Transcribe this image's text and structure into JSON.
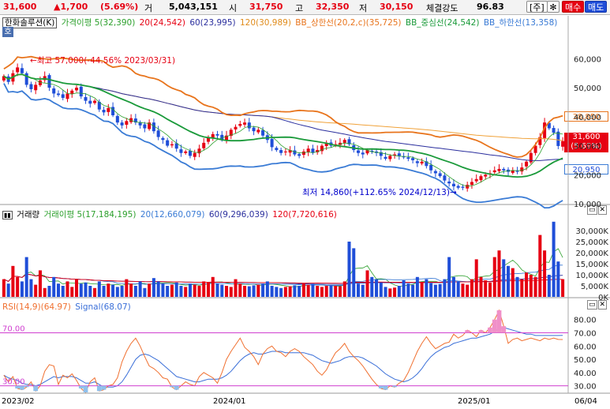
{
  "quote": {
    "price": "31,600",
    "change": "▲1,700",
    "change_pct": "(5.69%)",
    "volume_label": "거",
    "volume": "5,043,151",
    "open_label": "시",
    "open": "31,750",
    "high_label": "고",
    "high": "32,350",
    "low_label": "저",
    "low": "30,150",
    "strength_label": "체결강도",
    "strength": "96.83"
  },
  "buttons": {
    "week": "[주]",
    "settings_icon": "gear-icon",
    "buy": "매수",
    "sell": "매도"
  },
  "header_tab": "호",
  "price_legend": {
    "name": "한화솔루션(K)",
    "gap": "가격이평 5(32,390)",
    "ma20": "20(24,542)",
    "ma60": "60(23,995)",
    "ma120": "120(30,989)",
    "bb_upper": "BB_상한선(20,2,c)(35,725)",
    "bb_mid": "BB_중심선(24,542)",
    "bb_lower": "BB_하한선(13,358)"
  },
  "volume_legend": {
    "name": "거래량",
    "ma5": "거래이평 5(17,184,195)",
    "ma20": "20(12,660,079)",
    "ma60": "60(9,296,039)",
    "ma120": "120(7,720,616)"
  },
  "rsi_legend": {
    "rsi": "RSI(14,9)(64.97)",
    "signal": "Signal(68.07)"
  },
  "annotations": {
    "high": "←최고 57,000(-44.56% 2023/03/31)",
    "low": "최저 14,860(+112.65% 2024/12/13)→"
  },
  "price_tags": {
    "upper": "38,850",
    "current": "31,600",
    "current_pct": "(5.69%)",
    "lower": "20,950"
  },
  "x_labels": [
    "2023/02",
    "2024/01",
    "2025/01",
    "06/04"
  ],
  "colors": {
    "up": "#e60012",
    "down": "#1f4ed8",
    "ma5": "#2ca02c",
    "ma20": "#e8741c",
    "ma60": "#2b2f9e",
    "ma120": "#f0a23a",
    "bb_upper": "#e8741c",
    "bb_mid": "#1a9a3a",
    "bb_lower": "#3a7bd5",
    "rsi": "#f07030",
    "signal": "#3a6fd8"
  },
  "chart_data": [
    {
      "type": "candlestick",
      "title": "한화솔루션(K)",
      "ylim": [
        10000,
        68000
      ],
      "yticks": [
        10000,
        20000,
        30000,
        40000,
        50000,
        60000
      ],
      "ytick_labels": [
        "10,000",
        "20,000",
        "30,000",
        "40,000",
        "50,000",
        "60,000"
      ],
      "period": "weekly",
      "x_range": [
        "2023/02",
        "2025/06"
      ],
      "close": [
        54000,
        52000,
        55000,
        57000,
        55000,
        51000,
        49500,
        51000,
        52500,
        54000,
        50000,
        48000,
        47500,
        46500,
        48000,
        49000,
        50000,
        47000,
        45500,
        44500,
        45500,
        42500,
        41500,
        43000,
        40500,
        38000,
        37000,
        38500,
        39500,
        38000,
        37000,
        36000,
        38000,
        35000,
        33000,
        32000,
        30000,
        30500,
        29000,
        27500,
        28000,
        26500,
        27500,
        29000,
        31000,
        33000,
        34000,
        33500,
        32000,
        33500,
        35500,
        36500,
        37500,
        38000,
        36000,
        35000,
        35500,
        33500,
        32000,
        29500,
        28500,
        27500,
        28000,
        28500,
        27000,
        26500,
        28000,
        29000,
        27500,
        28500,
        30000,
        31000,
        30000,
        30500,
        31000,
        32000,
        30500,
        28500,
        27500,
        27000,
        28500,
        28000,
        27500,
        26500,
        25500,
        26500,
        27000,
        26500,
        26000,
        25500,
        25000,
        24000,
        24500,
        23000,
        21500,
        20500,
        19500,
        18000,
        17000,
        16000,
        15500,
        15500,
        16500,
        17500,
        18500,
        19500,
        20000,
        20500,
        21500,
        22000,
        21500,
        21000,
        21500,
        21000,
        22500,
        24500,
        27500,
        30000,
        33000,
        38000,
        36000,
        34500,
        29900,
        31600
      ],
      "high": 57000,
      "high_date": "2023/03/31",
      "low": 14860,
      "low_date": "2024/12/13",
      "last": {
        "open": 31750,
        "high": 32350,
        "low": 30150,
        "close": 31600,
        "change": 1700,
        "change_pct": 5.69
      },
      "series_last": {
        "ma5": 32390,
        "ma20": 24542,
        "ma60": 23995,
        "ma120": 30989,
        "bb_upper": 35725,
        "bb_mid": 24542,
        "bb_lower": 13358
      }
    },
    {
      "type": "bar",
      "title": "거래량",
      "ylim": [
        0,
        35000
      ],
      "ytick_labels": [
        "0K",
        "5,000K",
        "10,000K",
        "15,000K",
        "20,000K",
        "25,000K",
        "30,000K"
      ],
      "values_k": [
        8000,
        6000,
        14000,
        9000,
        7000,
        18000,
        8000,
        5500,
        12000,
        4000,
        5000,
        9000,
        6000,
        5000,
        7000,
        4500,
        8000,
        6000,
        6500,
        5000,
        4000,
        7000,
        5000,
        6000,
        5500,
        4500,
        5000,
        8000,
        6000,
        5000,
        7000,
        4000,
        6000,
        8500,
        7000,
        6000,
        5000,
        5500,
        6500,
        5000,
        4500,
        6000,
        5500,
        5000,
        7000,
        6500,
        9000,
        6000,
        5500,
        5000,
        4500,
        8000,
        6000,
        5000,
        4800,
        5200,
        5500,
        6000,
        7000,
        5000,
        4500,
        4000,
        4500,
        4800,
        5200,
        5000,
        6000,
        5500,
        6000,
        5000,
        4500,
        5000,
        5200,
        5000,
        4800,
        7000,
        25000,
        22000,
        6000,
        5500,
        12000,
        9000,
        8000,
        6500,
        4500,
        3800,
        4200,
        5000,
        7500,
        6000,
        5500,
        9000,
        6500,
        8000,
        6200,
        5500,
        5800,
        8000,
        18000,
        9000,
        7000,
        6000,
        5500,
        8000,
        17000,
        9000,
        7500,
        6500,
        18000,
        21000,
        17000,
        14000,
        13000,
        9000,
        8000,
        11000,
        10000,
        9000,
        28000,
        21000,
        10000,
        34000,
        16000,
        8000
      ],
      "last_k": 5043,
      "averages": {
        "ma5": 17184195,
        "ma20": 12660079,
        "ma60": 9296039,
        "ma120": 7720616
      }
    },
    {
      "type": "line",
      "title": "RSI",
      "ylim": [
        25,
        87
      ],
      "yticks": [
        30,
        40,
        50,
        60,
        70,
        80
      ],
      "overbought": 70,
      "oversold": 30,
      "series": [
        {
          "name": "RSI(14,9)",
          "last": 64.97
        },
        {
          "name": "Signal",
          "last": 68.07
        }
      ],
      "rsi": [
        38,
        33,
        37,
        28,
        27,
        29,
        33,
        26,
        30,
        41,
        46,
        45,
        31,
        38,
        36,
        39,
        34,
        28,
        25,
        33,
        36,
        26,
        27,
        30,
        31,
        36,
        48,
        56,
        62,
        66,
        60,
        52,
        45,
        43,
        40,
        36,
        35,
        29,
        27,
        30,
        33,
        31,
        30,
        37,
        40,
        38,
        36,
        32,
        40,
        50,
        56,
        61,
        66,
        59,
        56,
        52,
        46,
        54,
        58,
        60,
        56,
        55,
        52,
        56,
        58,
        56,
        52,
        49,
        46,
        41,
        38,
        42,
        49,
        55,
        58,
        62,
        56,
        52,
        49,
        45,
        40,
        35,
        31,
        28,
        27,
        30,
        29,
        32,
        34,
        40,
        48,
        56,
        62,
        67,
        62,
        58,
        60,
        62,
        63,
        69,
        66,
        68,
        72,
        70,
        67,
        72,
        70,
        74,
        80,
        87,
        75,
        62,
        65,
        66,
        64,
        65,
        66,
        65,
        64,
        66,
        65,
        66,
        65,
        64.97
      ],
      "signal": [
        38,
        36,
        35,
        34,
        32,
        31,
        31,
        30,
        31,
        33,
        35,
        37,
        36,
        37,
        37,
        37,
        36,
        34,
        32,
        32,
        33,
        31,
        29,
        29,
        29,
        30,
        33,
        38,
        44,
        50,
        53,
        54,
        53,
        51,
        49,
        46,
        43,
        40,
        37,
        36,
        35,
        34,
        33,
        33,
        34,
        35,
        35,
        35,
        36,
        38,
        41,
        45,
        49,
        52,
        54,
        55,
        54,
        54,
        55,
        56,
        56,
        56,
        55,
        55,
        55,
        55,
        55,
        54,
        53,
        51,
        49,
        48,
        47,
        48,
        49,
        51,
        52,
        52,
        52,
        51,
        49,
        47,
        45,
        42,
        39,
        37,
        35,
        34,
        33,
        34,
        36,
        39,
        43,
        48,
        52,
        55,
        57,
        59,
        60,
        62,
        63,
        64,
        65,
        66,
        66,
        67,
        68,
        69,
        71,
        73,
        74,
        73,
        72,
        71,
        70,
        69,
        69,
        68,
        68,
        68,
        68,
        68,
        68,
        68.07
      ]
    }
  ]
}
